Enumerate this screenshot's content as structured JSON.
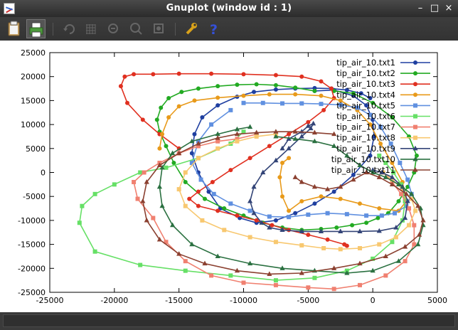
{
  "window": {
    "title": "Gnuplot (window id : 1)",
    "minimize": "–",
    "maximize": "□",
    "close": "×"
  },
  "toolbar": {
    "icons": [
      "clipboard-icon",
      "print-icon",
      "replot-icon",
      "grid-icon",
      "previous-zoom-icon",
      "next-zoom-icon",
      "autoscale-icon",
      "settings-icon",
      "help-icon"
    ]
  },
  "chart_data": {
    "type": "line",
    "xlim": [
      -25000,
      5000
    ],
    "ylim": [
      -25000,
      25000
    ],
    "xticks": [
      -25000,
      -20000,
      -15000,
      -10000,
      -5000,
      0,
      5000
    ],
    "yticks": [
      -25000,
      -20000,
      -15000,
      -10000,
      -5000,
      0,
      5000,
      10000,
      15000,
      20000,
      25000
    ],
    "grid": false,
    "legend_position": "top-right",
    "series": [
      {
        "name": "tip_air_10.txt1",
        "color": "#1f3fa0",
        "marker": "circle",
        "x": [
          -4500,
          -3000,
          -1500,
          -500,
          0,
          100,
          -200,
          -1500,
          -3000,
          -4500,
          -6000,
          -7500,
          -9000,
          -10300,
          -11800,
          -12700,
          -13500,
          -14000,
          -13800,
          -13200,
          -12000,
          -10500,
          -9200,
          -7500,
          -6000,
          -4500,
          -3200,
          -2000,
          -900,
          -200
        ],
        "y": [
          17000,
          17200,
          16000,
          14000,
          11000,
          7500,
          3500,
          -500,
          -4000,
          -6500,
          -8500,
          -10000,
          -10500,
          -9500,
          -7500,
          -4000,
          0,
          4000,
          8000,
          11500,
          14000,
          15800,
          16800,
          17300,
          17500,
          17600,
          17500,
          17200,
          16500,
          15500
        ]
      },
      {
        "name": "tip_air_10.txt2",
        "color": "#22aa22",
        "marker": "circle",
        "x": [
          -3000,
          -1500,
          0,
          1500,
          2800,
          3400,
          3200,
          2700,
          2000,
          1200,
          400,
          -500,
          -1600,
          -2800,
          -4000,
          -5500,
          -7000,
          -8500,
          -10000,
          -11500,
          -13000,
          -14500,
          -15400,
          -16000,
          -16500,
          -16700,
          -16400,
          -15800,
          -14800,
          -13500,
          -12000,
          -10500,
          -9000,
          -7500,
          -6000,
          -4500
        ],
        "y": [
          17000,
          16500,
          14500,
          11500,
          7500,
          3500,
          0,
          -3000,
          -6000,
          -8500,
          -9500,
          -10500,
          -11000,
          -11500,
          -11800,
          -12000,
          -11500,
          -10500,
          -9000,
          -7500,
          -5500,
          -2000,
          2000,
          5500,
          8500,
          11000,
          13500,
          15500,
          16800,
          17500,
          18000,
          18300,
          18400,
          18200,
          17700,
          17000
        ]
      },
      {
        "name": "tip_air_10.txt3",
        "color": "#e03020",
        "marker": "circle",
        "x": [
          -15000,
          -16500,
          -17800,
          -19000,
          -19500,
          -19200,
          -18500,
          -17000,
          -15000,
          -12500,
          -10000,
          -7500,
          -5500,
          -4000,
          -3200,
          -3000,
          -3800,
          -5000,
          -6500,
          -8000,
          -9500,
          -11000,
          -12400,
          -13500,
          -14200,
          -13500,
          -12000,
          -10500,
          -9000,
          -7800,
          -6500,
          -5000,
          -3500,
          -2200,
          -2000
        ],
        "y": [
          5000,
          8000,
          11000,
          14500,
          18000,
          20000,
          20500,
          20500,
          20600,
          20600,
          20500,
          20300,
          20000,
          19000,
          17500,
          15500,
          13000,
          10500,
          8000,
          5500,
          3000,
          500,
          -2000,
          -4000,
          -5500,
          -7000,
          -8000,
          -9000,
          -10000,
          -11000,
          -12000,
          -13000,
          -14000,
          -15000,
          -15300
        ]
      },
      {
        "name": "tip_air_10.txt4",
        "color": "#e89a1a",
        "marker": "circle",
        "x": [
          -16500,
          -16300,
          -15800,
          -15000,
          -13800,
          -12000,
          -10000,
          -8000,
          -6000,
          -4000,
          -2500,
          -1200,
          -200,
          600,
          1500,
          2300,
          2600,
          2000,
          500,
          -1000,
          -2500,
          -4000,
          -5500,
          -6500,
          -7000,
          -7200,
          -7000,
          -6500
        ],
        "y": [
          5000,
          8000,
          11500,
          13800,
          15000,
          15600,
          16000,
          16300,
          16300,
          16000,
          15000,
          13000,
          10000,
          6000,
          2000,
          -2000,
          -6000,
          -8000,
          -7500,
          -6500,
          -5500,
          -5000,
          -6000,
          -8000,
          -5000,
          -1000,
          2000,
          3000
        ]
      },
      {
        "name": "tip_air_10.txt5",
        "color": "#6090e0",
        "marker": "square",
        "x": [
          -10000,
          -8500,
          -7000,
          -5500,
          -4000,
          -2500,
          -1200,
          -200,
          600,
          1400,
          2100,
          2700,
          3000,
          2600,
          1700,
          700,
          -500,
          -2000,
          -3500,
          -5000,
          -6500,
          -8000,
          -9500,
          -11000,
          -12300,
          -13300,
          -14000,
          -13500,
          -12500,
          -11000
        ],
        "y": [
          14500,
          14500,
          14400,
          14400,
          14300,
          14100,
          13500,
          12000,
          9500,
          6000,
          2000,
          -1500,
          -4500,
          -7000,
          -8500,
          -9000,
          -9000,
          -8700,
          -8500,
          -8800,
          -9300,
          -9200,
          -8000,
          -6500,
          -4500,
          -1500,
          2000,
          6500,
          10000,
          13000
        ]
      },
      {
        "name": "tip_air_10.txt6",
        "color": "#66e066",
        "marker": "square",
        "x": [
          -10000,
          -11000,
          -13500,
          -16000,
          -18000,
          -20000,
          -21500,
          -22500,
          -22700,
          -21500,
          -18000,
          -14500,
          -11000,
          -7500,
          -4500,
          -2000,
          0,
          1500,
          2300,
          2500,
          2200,
          1600,
          1000,
          500
        ],
        "y": [
          8500,
          6000,
          3000,
          1000,
          0,
          -2500,
          -4500,
          -7000,
          -10500,
          -16500,
          -19300,
          -20500,
          -21500,
          -22500,
          -22000,
          -20500,
          -18000,
          -14500,
          -10000,
          -6000,
          -2500,
          0,
          2000,
          3500
        ]
      },
      {
        "name": "tip_air_10.txt7",
        "color": "#f08070",
        "marker": "square",
        "x": [
          -9000,
          -10500,
          -12000,
          -13500,
          -15000,
          -16500,
          -17700,
          -18500,
          -18200,
          -17000,
          -16000,
          -14500,
          -12500,
          -10000,
          -7500,
          -5000,
          -3000,
          -1000,
          1000,
          2500,
          3200,
          3200,
          2800,
          2200,
          1500,
          800
        ],
        "y": [
          8000,
          7000,
          6500,
          5500,
          4000,
          2000,
          0,
          -2000,
          -5500,
          -9500,
          -14500,
          -18500,
          -21500,
          -23000,
          -23500,
          -24000,
          -24300,
          -23500,
          -21500,
          -18500,
          -15000,
          -11000,
          -7500,
          -4500,
          -2000,
          0
        ]
      },
      {
        "name": "tip_air_10.txt8",
        "color": "#f8c870",
        "marker": "square",
        "x": [
          -7500,
          -9000,
          -10500,
          -12000,
          -13500,
          -14500,
          -15000,
          -14500,
          -13200,
          -11500,
          -9500,
          -7500,
          -5500,
          -3800,
          -2500,
          -1000,
          500,
          1800,
          2800,
          3300,
          3000,
          2300,
          1500,
          800
        ],
        "y": [
          8000,
          7500,
          6500,
          5000,
          3000,
          0,
          -3500,
          -7000,
          -10000,
          -12000,
          -13500,
          -14500,
          -15200,
          -15800,
          -16000,
          -15800,
          -15000,
          -13500,
          -11000,
          -8000,
          -5500,
          -3500,
          -1500,
          0
        ]
      },
      {
        "name": "tip_air_10.txt9",
        "color": "#334477",
        "marker": "triangle",
        "x": [
          -7000,
          -6500,
          -5500,
          -5000,
          -4600,
          -4800,
          -5500,
          -6500,
          -7500,
          -8500,
          -9200,
          -9500,
          -9200,
          -8600,
          -8000,
          -7000,
          -5500,
          -4000,
          -2500,
          -1000,
          500,
          1800,
          2500,
          2700,
          2300,
          1500,
          700,
          0
        ],
        "y": [
          5000,
          7000,
          8500,
          9700,
          10200,
          9200,
          7500,
          5000,
          2500,
          0,
          -3000,
          -6000,
          -8500,
          -10500,
          -11500,
          -12000,
          -12300,
          -12300,
          -12300,
          -12300,
          -12200,
          -11500,
          -9500,
          -6000,
          -3000,
          -1000,
          0,
          500
        ]
      },
      {
        "name": "tip_air_10.txt10",
        "color": "#2a7040",
        "marker": "triangle",
        "x": [
          -9500,
          -10500,
          -12000,
          -14000,
          -15500,
          -16300,
          -16500,
          -16300,
          -15500,
          -14000,
          -12000,
          -9500,
          -7000,
          -4500,
          -2000,
          0,
          2000,
          3500,
          3900,
          3700,
          3000,
          2000,
          1000,
          0,
          -1000,
          -2000,
          -3000,
          -4500,
          -6000,
          -7500
        ],
        "y": [
          9500,
          9000,
          8000,
          6500,
          4000,
          1000,
          -3000,
          -7000,
          -11000,
          -15000,
          -17500,
          -19000,
          -20000,
          -20500,
          -21000,
          -20500,
          -18500,
          -15000,
          -11000,
          -7500,
          -4500,
          -2500,
          -1000,
          0,
          1500,
          3500,
          5500,
          6500,
          7000,
          7500
        ]
      },
      {
        "name": "tip_air_10.txt11",
        "color": "#8b4030",
        "marker": "triangle",
        "x": [
          -3000,
          -4500,
          -6000,
          -7500,
          -9000,
          -10500,
          -12000,
          -13500,
          -15000,
          -16500,
          -17500,
          -17800,
          -17500,
          -16500,
          -15000,
          -13000,
          -10500,
          -8000,
          -5500,
          -3000,
          -1000,
          1000,
          2500,
          3600,
          3900,
          3500,
          2600,
          1500,
          500,
          -500,
          -1500,
          -2500,
          -3500,
          -4500,
          -5500,
          -6000
        ],
        "y": [
          8000,
          8300,
          8500,
          8500,
          8300,
          8000,
          7200,
          6000,
          4000,
          1500,
          -2000,
          -6000,
          -10000,
          -14000,
          -17000,
          -19000,
          -20500,
          -21200,
          -21000,
          -20000,
          -19000,
          -17500,
          -15500,
          -13000,
          -10000,
          -7000,
          -4500,
          -2500,
          -1000,
          0,
          -1500,
          -3000,
          -3500,
          -3000,
          -2000,
          -1000
        ]
      }
    ]
  }
}
